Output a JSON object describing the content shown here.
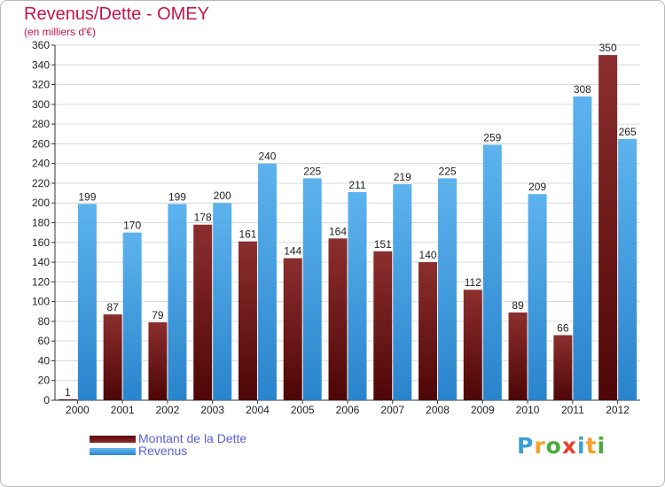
{
  "title": "Revenus/Dette - OMEY",
  "subtitle": "(en milliers d'€)",
  "colors": {
    "title": "#c4164a",
    "debt_bar": "#7b1f1f",
    "revenue_bar": "#3f9fe3",
    "legend_text": "#5961d6",
    "grid": "#d6d6d6",
    "axis": "#333333"
  },
  "legend": [
    {
      "label": "Montant de la Dette",
      "color": "#6e1212"
    },
    {
      "label": "Revenus",
      "color": "#3f9fe3"
    }
  ],
  "logo": {
    "text": "Proxiti",
    "letter_colors": [
      "#3aa0d8",
      "#f2a12c",
      "#4aaa3b",
      "#e8412c",
      "#3aa0d8",
      "#f2a12c",
      "#4aaa3b"
    ]
  },
  "chart_data": {
    "type": "bar",
    "title": "Revenus/Dette - OMEY",
    "subtitle": "(en milliers d'€)",
    "xlabel": "",
    "ylabel": "",
    "categories": [
      "2000",
      "2001",
      "2002",
      "2003",
      "2004",
      "2005",
      "2006",
      "2007",
      "2008",
      "2009",
      "2010",
      "2011",
      "2012"
    ],
    "series": [
      {
        "name": "Montant de la Dette",
        "values": [
          1,
          87,
          79,
          178,
          161,
          144,
          164,
          151,
          140,
          112,
          89,
          66,
          350
        ]
      },
      {
        "name": "Revenus",
        "values": [
          199,
          170,
          199,
          200,
          240,
          225,
          211,
          219,
          225,
          259,
          209,
          308,
          265
        ]
      }
    ],
    "ylim": [
      0,
      360
    ],
    "ytick_step": 20,
    "grid": true,
    "legend_position": "bottom-left"
  }
}
